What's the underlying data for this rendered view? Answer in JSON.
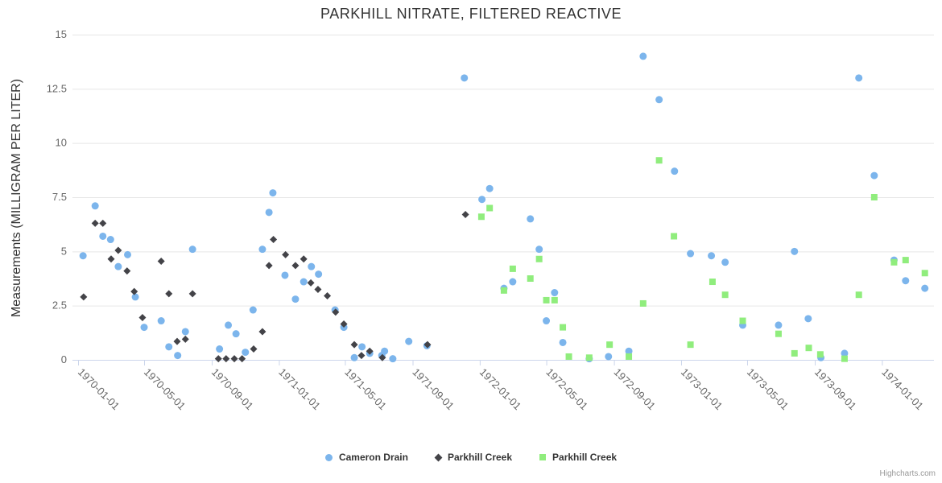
{
  "credit": "Highcharts.com",
  "chart_data": {
    "type": "scatter",
    "title": "PARKHILL NITRATE, FILTERED REACTIVE",
    "xlabel": "",
    "ylabel": "Measurements (MILLIGRAM PER LITER)",
    "ylim": [
      0,
      15
    ],
    "yticks": [
      0,
      2.5,
      5,
      7.5,
      10,
      12.5,
      15
    ],
    "xticks": [
      "1970-01-01",
      "1970-05-01",
      "1970-09-01",
      "1971-01-01",
      "1971-05-01",
      "1971-09-01",
      "1972-01-01",
      "1972-05-01",
      "1972-09-01",
      "1973-01-01",
      "1973-05-01",
      "1973-09-01",
      "1974-01-01"
    ],
    "grid": "horizontal",
    "legend_position": "bottom-center",
    "colors": {
      "grid": "#e6e6e6",
      "axis_line": "#ccd6eb",
      "tick_label": "#666666",
      "title": "#333333",
      "background": "#ffffff"
    },
    "series": [
      {
        "name": "Cameron Drain",
        "marker": "circle",
        "color": "#7cb5ec",
        "points": [
          [
            "1970-01-10",
            4.8
          ],
          [
            "1970-02-01",
            7.1
          ],
          [
            "1970-02-15",
            5.7
          ],
          [
            "1970-03-01",
            5.55
          ],
          [
            "1970-03-15",
            4.3
          ],
          [
            "1970-04-01",
            4.85
          ],
          [
            "1970-04-15",
            2.9
          ],
          [
            "1970-05-01",
            1.5
          ],
          [
            "1970-06-01",
            1.8
          ],
          [
            "1970-06-15",
            0.6
          ],
          [
            "1970-07-01",
            0.2
          ],
          [
            "1970-07-15",
            1.3
          ],
          [
            "1970-07-28",
            5.1
          ],
          [
            "1970-09-15",
            0.5
          ],
          [
            "1970-10-01",
            1.6
          ],
          [
            "1970-10-15",
            1.2
          ],
          [
            "1970-11-01",
            0.35
          ],
          [
            "1970-11-15",
            2.3
          ],
          [
            "1970-12-02",
            5.1
          ],
          [
            "1970-12-14",
            6.8
          ],
          [
            "1970-12-21",
            7.7
          ],
          [
            "1971-01-12",
            3.9
          ],
          [
            "1971-01-31",
            2.8
          ],
          [
            "1971-02-15",
            3.6
          ],
          [
            "1971-03-01",
            4.3
          ],
          [
            "1971-03-14",
            3.95
          ],
          [
            "1971-04-13",
            2.3
          ],
          [
            "1971-04-29",
            1.5
          ],
          [
            "1971-05-18",
            0.1
          ],
          [
            "1971-06-01",
            0.6
          ],
          [
            "1971-06-15",
            0.3
          ],
          [
            "1971-07-07",
            0.2
          ],
          [
            "1971-07-12",
            0.4
          ],
          [
            "1971-07-27",
            0.05
          ],
          [
            "1971-08-25",
            0.85
          ],
          [
            "1971-09-27",
            0.65
          ],
          [
            "1971-12-04",
            13
          ],
          [
            "1972-01-05",
            7.4
          ],
          [
            "1972-01-19",
            7.9
          ],
          [
            "1972-02-14",
            3.3
          ],
          [
            "1972-03-01",
            3.6
          ],
          [
            "1972-04-02",
            6.5
          ],
          [
            "1972-04-18",
            5.1
          ],
          [
            "1972-05-01",
            1.8
          ],
          [
            "1972-05-16",
            3.1
          ],
          [
            "1972-05-31",
            0.8
          ],
          [
            "1972-07-18",
            0.05
          ],
          [
            "1972-08-22",
            0.15
          ],
          [
            "1972-09-28",
            0.4
          ],
          [
            "1972-10-24",
            14
          ],
          [
            "1972-11-22",
            12
          ],
          [
            "1972-12-20",
            8.7
          ],
          [
            "1973-01-18",
            4.9
          ],
          [
            "1973-02-25",
            4.8
          ],
          [
            "1973-03-22",
            4.5
          ],
          [
            "1973-04-23",
            1.6
          ],
          [
            "1973-06-27",
            1.6
          ],
          [
            "1973-07-26",
            5
          ],
          [
            "1973-08-20",
            1.9
          ],
          [
            "1973-09-12",
            0.1
          ],
          [
            "1973-10-25",
            0.3
          ],
          [
            "1973-11-20",
            13
          ],
          [
            "1973-12-18",
            8.5
          ],
          [
            "1974-01-23",
            4.6
          ],
          [
            "1974-02-13",
            3.65
          ],
          [
            "1974-03-20",
            3.3
          ]
        ]
      },
      {
        "name": "Parkhill Creek",
        "marker": "diamond",
        "color": "#434348",
        "points": [
          [
            "1970-01-11",
            2.9
          ],
          [
            "1970-02-01",
            6.3
          ],
          [
            "1970-02-15",
            6.3
          ],
          [
            "1970-03-02",
            4.65
          ],
          [
            "1970-03-15",
            5.05
          ],
          [
            "1970-03-31",
            4.1
          ],
          [
            "1970-04-13",
            3.15
          ],
          [
            "1970-04-28",
            1.95
          ],
          [
            "1970-06-01",
            4.55
          ],
          [
            "1970-06-15",
            3.05
          ],
          [
            "1970-06-30",
            0.85
          ],
          [
            "1970-07-15",
            0.95
          ],
          [
            "1970-07-28",
            3.05
          ],
          [
            "1970-09-13",
            0.05
          ],
          [
            "1970-09-27",
            0.05
          ],
          [
            "1970-10-12",
            0.05
          ],
          [
            "1970-10-26",
            0.05
          ],
          [
            "1970-11-16",
            0.5
          ],
          [
            "1970-12-02",
            1.3
          ],
          [
            "1970-12-14",
            4.35
          ],
          [
            "1970-12-22",
            5.55
          ],
          [
            "1971-01-13",
            4.85
          ],
          [
            "1971-01-31",
            4.35
          ],
          [
            "1971-02-15",
            4.65
          ],
          [
            "1971-02-28",
            3.55
          ],
          [
            "1971-03-13",
            3.25
          ],
          [
            "1971-03-30",
            2.95
          ],
          [
            "1971-04-14",
            2.2
          ],
          [
            "1971-04-29",
            1.65
          ],
          [
            "1971-05-18",
            0.7
          ],
          [
            "1971-05-31",
            0.2
          ],
          [
            "1971-06-15",
            0.4
          ],
          [
            "1971-07-08",
            0.1
          ],
          [
            "1971-09-28",
            0.7
          ],
          [
            "1971-12-06",
            6.7
          ]
        ]
      },
      {
        "name": "Parkhill Creek",
        "marker": "square",
        "color": "#90ed7d",
        "points": [
          [
            "1972-01-04",
            6.6
          ],
          [
            "1972-01-19",
            7.0
          ],
          [
            "1972-02-14",
            3.2
          ],
          [
            "1972-03-01",
            4.2
          ],
          [
            "1972-04-02",
            3.75
          ],
          [
            "1972-04-18",
            4.65
          ],
          [
            "1972-05-01",
            2.75
          ],
          [
            "1972-05-16",
            2.75
          ],
          [
            "1972-05-31",
            1.5
          ],
          [
            "1972-06-11",
            0.15
          ],
          [
            "1972-07-18",
            0.1
          ],
          [
            "1972-08-24",
            0.7
          ],
          [
            "1972-09-28",
            0.15
          ],
          [
            "1972-10-24",
            2.6
          ],
          [
            "1972-11-22",
            9.2
          ],
          [
            "1972-12-19",
            5.7
          ],
          [
            "1973-01-18",
            0.7
          ],
          [
            "1973-02-27",
            3.6
          ],
          [
            "1973-03-22",
            3.0
          ],
          [
            "1973-04-23",
            1.8
          ],
          [
            "1973-06-27",
            1.2
          ],
          [
            "1973-07-26",
            0.3
          ],
          [
            "1973-08-21",
            0.55
          ],
          [
            "1973-09-11",
            0.25
          ],
          [
            "1973-10-25",
            0.05
          ],
          [
            "1973-11-20",
            3.0
          ],
          [
            "1973-12-18",
            7.5
          ],
          [
            "1974-01-23",
            4.5
          ],
          [
            "1974-02-13",
            4.6
          ],
          [
            "1974-03-20",
            4.0
          ]
        ]
      }
    ]
  }
}
